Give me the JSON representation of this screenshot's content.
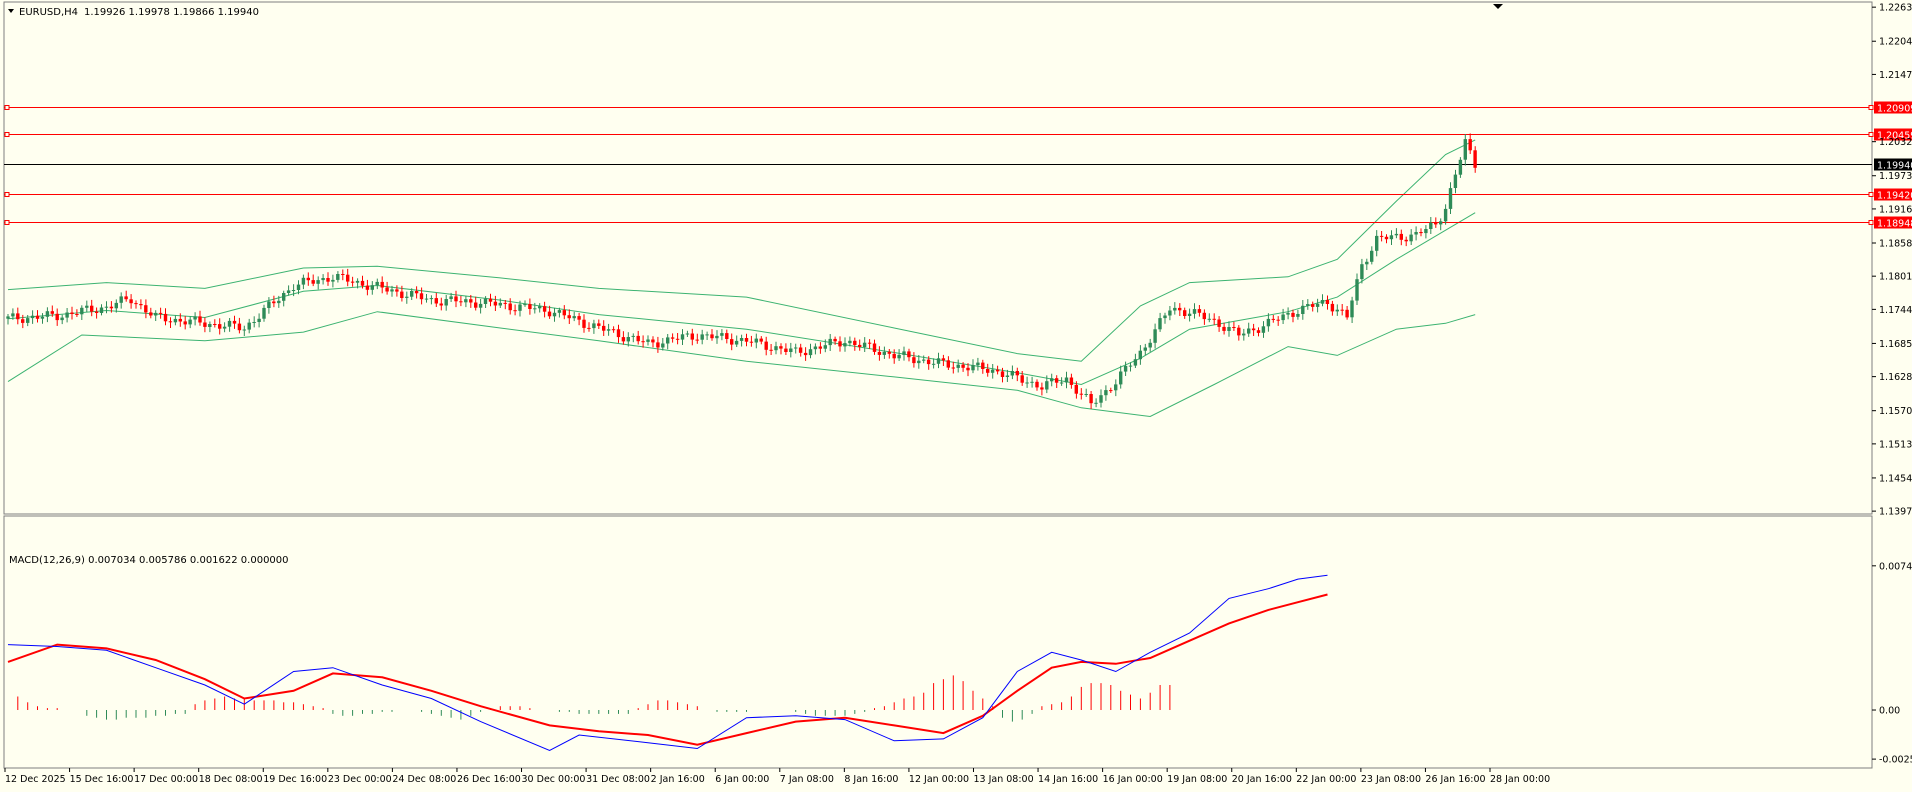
{
  "chart_data": [
    {
      "type": "candlestick",
      "title": "EURUSD,H4",
      "ohlc_header": "1.19926 1.19978 1.19866 1.19940",
      "symbol": "EURUSD",
      "timeframe": "H4",
      "current_price": "1.19940",
      "ylim": [
        1.1396,
        1.2265
      ],
      "y_ticks": [
        "1.22630",
        "1.22045",
        "1.21475",
        "1.20320",
        "1.19735",
        "1.19165",
        "1.18580",
        "1.18010",
        "1.17440",
        "1.16855",
        "1.16285",
        "1.15700",
        "1.15130",
        "1.14545",
        "1.13975"
      ],
      "y_tick_values": [
        1.2263,
        1.22045,
        1.21475,
        1.2032,
        1.19735,
        1.19165,
        1.1858,
        1.1801,
        1.1744,
        1.16855,
        1.16285,
        1.157,
        1.1513,
        1.14545,
        1.13975
      ],
      "horizontal_lines": [
        {
          "label": "1.20909",
          "value": 1.20909,
          "color": "#ff0000"
        },
        {
          "label": "1.20459",
          "value": 1.20459,
          "color": "#ff0000"
        },
        {
          "label": "1.19420",
          "value": 1.1942,
          "color": "#ff0000"
        },
        {
          "label": "1.18948",
          "value": 1.18948,
          "color": "#ff0000"
        }
      ],
      "x_ticks": [
        "12 Dec 2025",
        "15 Dec 16:00",
        "17 Dec 00:00",
        "18 Dec 08:00",
        "19 Dec 16:00",
        "23 Dec 00:00",
        "24 Dec 08:00",
        "26 Dec 16:00",
        "30 Dec 00:00",
        "31 Dec 08:00",
        "2 Jan 16:00",
        "6 Jan 00:00",
        "7 Jan 08:00",
        "8 Jan 16:00",
        "12 Jan 00:00",
        "13 Jan 08:00",
        "14 Jan 16:00",
        "16 Jan 00:00",
        "19 Jan 08:00",
        "20 Jan 16:00",
        "22 Jan 00:00",
        "23 Jan 08:00",
        "26 Jan 16:00",
        "28 Jan 00:00"
      ],
      "close_path": [
        [
          0,
          1.1728
        ],
        [
          10,
          1.1733
        ],
        [
          20,
          1.1748
        ],
        [
          25,
          1.1762
        ],
        [
          30,
          1.173
        ],
        [
          40,
          1.172
        ],
        [
          48,
          1.1712
        ],
        [
          58,
          1.1785
        ],
        [
          66,
          1.18
        ],
        [
          76,
          1.178
        ],
        [
          86,
          1.176
        ],
        [
          96,
          1.1756
        ],
        [
          110,
          1.1742
        ],
        [
          120,
          1.1712
        ],
        [
          130,
          1.1685
        ],
        [
          140,
          1.17
        ],
        [
          150,
          1.169
        ],
        [
          160,
          1.167
        ],
        [
          170,
          1.169
        ],
        [
          180,
          1.1665
        ],
        [
          190,
          1.165
        ],
        [
          200,
          1.164
        ],
        [
          210,
          1.1612
        ],
        [
          215,
          1.1625
        ],
        [
          220,
          1.158
        ],
        [
          225,
          1.162
        ],
        [
          230,
          1.167
        ],
        [
          236,
          1.1745
        ],
        [
          240,
          1.174
        ],
        [
          246,
          1.172
        ],
        [
          250,
          1.17
        ],
        [
          256,
          1.172
        ],
        [
          262,
          1.1743
        ],
        [
          268,
          1.1757
        ],
        [
          272,
          1.173
        ],
        [
          275,
          1.182
        ],
        [
          278,
          1.1865
        ],
        [
          282,
          1.1868
        ],
        [
          286,
          1.1872
        ],
        [
          290,
          1.189
        ],
        [
          292,
          1.192
        ],
        [
          294,
          1.1975
        ],
        [
          296,
          1.203
        ],
        [
          298,
          1.1994
        ]
      ],
      "bollinger_upper": [
        [
          0,
          1.1778
        ],
        [
          20,
          1.179
        ],
        [
          40,
          1.178
        ],
        [
          60,
          1.1815
        ],
        [
          75,
          1.1818
        ],
        [
          100,
          1.1798
        ],
        [
          120,
          1.178
        ],
        [
          150,
          1.1765
        ],
        [
          180,
          1.1712
        ],
        [
          205,
          1.1668
        ],
        [
          218,
          1.1655
        ],
        [
          230,
          1.175
        ],
        [
          240,
          1.179
        ],
        [
          260,
          1.18
        ],
        [
          270,
          1.183
        ],
        [
          282,
          1.193
        ],
        [
          292,
          1.201
        ],
        [
          298,
          1.2035
        ]
      ],
      "bollinger_middle": [
        [
          0,
          1.1728
        ],
        [
          20,
          1.1742
        ],
        [
          40,
          1.173
        ],
        [
          60,
          1.1775
        ],
        [
          75,
          1.1785
        ],
        [
          100,
          1.176
        ],
        [
          120,
          1.1735
        ],
        [
          150,
          1.171
        ],
        [
          180,
          1.167
        ],
        [
          205,
          1.1635
        ],
        [
          218,
          1.1615
        ],
        [
          230,
          1.166
        ],
        [
          240,
          1.171
        ],
        [
          260,
          1.174
        ],
        [
          270,
          1.1765
        ],
        [
          282,
          1.183
        ],
        [
          292,
          1.188
        ],
        [
          298,
          1.191
        ]
      ],
      "bollinger_lower": [
        [
          0,
          1.162
        ],
        [
          15,
          1.17
        ],
        [
          40,
          1.169
        ],
        [
          60,
          1.1705
        ],
        [
          75,
          1.174
        ],
        [
          100,
          1.1712
        ],
        [
          120,
          1.169
        ],
        [
          150,
          1.1655
        ],
        [
          180,
          1.1628
        ],
        [
          205,
          1.1605
        ],
        [
          218,
          1.1575
        ],
        [
          232,
          1.156
        ],
        [
          245,
          1.1615
        ],
        [
          260,
          1.168
        ],
        [
          270,
          1.1665
        ],
        [
          282,
          1.171
        ],
        [
          292,
          1.172
        ],
        [
          298,
          1.1735
        ]
      ]
    },
    {
      "type": "macd",
      "title": "MACD(12,26,9) 0.007034 0.005786 0.001622 0.000000",
      "ylim": [
        -0.0027,
        0.008
      ],
      "y_ticks": [
        "0.00749",
        "0.00",
        "-0.00255"
      ],
      "y_tick_values": [
        0.00749,
        0.0,
        -0.00255
      ],
      "main_line": [
        [
          0,
          0.0034
        ],
        [
          10,
          0.0033
        ],
        [
          20,
          0.0031
        ],
        [
          30,
          0.0022
        ],
        [
          40,
          0.0013
        ],
        [
          48,
          0.0003
        ],
        [
          58,
          0.002
        ],
        [
          66,
          0.0022
        ],
        [
          76,
          0.0013
        ],
        [
          86,
          0.0006
        ],
        [
          96,
          -0.0006
        ],
        [
          110,
          -0.0021
        ],
        [
          116,
          -0.0013
        ],
        [
          130,
          -0.0017
        ],
        [
          140,
          -0.002
        ],
        [
          150,
          -0.0004
        ],
        [
          160,
          -0.0003
        ],
        [
          170,
          -0.0005
        ],
        [
          180,
          -0.0016
        ],
        [
          190,
          -0.0015
        ],
        [
          198,
          -0.0004
        ],
        [
          205,
          0.002
        ],
        [
          212,
          0.003
        ],
        [
          218,
          0.0026
        ],
        [
          225,
          0.002
        ],
        [
          232,
          0.003
        ],
        [
          240,
          0.004
        ],
        [
          248,
          0.0058
        ],
        [
          256,
          0.0063
        ],
        [
          262,
          0.0068
        ],
        [
          268,
          0.007
        ]
      ],
      "signal_line": [
        [
          0,
          0.0025
        ],
        [
          10,
          0.0034
        ],
        [
          20,
          0.0032
        ],
        [
          30,
          0.0026
        ],
        [
          40,
          0.0016
        ],
        [
          48,
          0.0006
        ],
        [
          58,
          0.001
        ],
        [
          66,
          0.0019
        ],
        [
          76,
          0.0017
        ],
        [
          86,
          0.001
        ],
        [
          96,
          0.0002
        ],
        [
          110,
          -0.0008
        ],
        [
          120,
          -0.0011
        ],
        [
          130,
          -0.0013
        ],
        [
          140,
          -0.0018
        ],
        [
          150,
          -0.0012
        ],
        [
          160,
          -0.0006
        ],
        [
          170,
          -0.0004
        ],
        [
          180,
          -0.0008
        ],
        [
          190,
          -0.0012
        ],
        [
          198,
          -0.0003
        ],
        [
          205,
          0.001
        ],
        [
          212,
          0.0022
        ],
        [
          218,
          0.0025
        ],
        [
          225,
          0.0024
        ],
        [
          232,
          0.0027
        ],
        [
          240,
          0.0036
        ],
        [
          248,
          0.0045
        ],
        [
          256,
          0.0052
        ],
        [
          262,
          0.0056
        ],
        [
          268,
          0.006
        ]
      ],
      "histogram": [
        [
          2,
          0.0007
        ],
        [
          4,
          0.0004
        ],
        [
          6,
          0.0002
        ],
        [
          8,
          0.0001
        ],
        [
          10,
          0.0001
        ],
        [
          12,
          0.0
        ],
        [
          14,
          0.0
        ],
        [
          16,
          -0.0003
        ],
        [
          18,
          -0.0004
        ],
        [
          20,
          -0.0005
        ],
        [
          22,
          -0.0005
        ],
        [
          24,
          -0.0004
        ],
        [
          26,
          -0.0004
        ],
        [
          28,
          -0.0004
        ],
        [
          30,
          -0.0003
        ],
        [
          32,
          -0.0003
        ],
        [
          34,
          -0.0002
        ],
        [
          36,
          -0.0002
        ],
        [
          38,
          0.0003
        ],
        [
          40,
          0.0005
        ],
        [
          42,
          0.0006
        ],
        [
          44,
          0.0007
        ],
        [
          46,
          0.0006
        ],
        [
          48,
          0.0006
        ],
        [
          50,
          0.0005
        ],
        [
          52,
          0.0005
        ],
        [
          54,
          0.0005
        ],
        [
          56,
          0.0004
        ],
        [
          58,
          0.0004
        ],
        [
          60,
          0.0003
        ],
        [
          62,
          0.0002
        ],
        [
          64,
          0.0001
        ],
        [
          66,
          -0.0002
        ],
        [
          68,
          -0.0003
        ],
        [
          70,
          -0.0003
        ],
        [
          72,
          -0.0002
        ],
        [
          74,
          -0.0002
        ],
        [
          76,
          -0.0001
        ],
        [
          78,
          -0.0001
        ],
        [
          80,
          0.0
        ],
        [
          82,
          0.0
        ],
        [
          84,
          -0.0001
        ],
        [
          86,
          -0.0002
        ],
        [
          88,
          -0.0003
        ],
        [
          90,
          -0.0004
        ],
        [
          92,
          -0.0005
        ],
        [
          94,
          -0.0003
        ],
        [
          96,
          -0.0001
        ],
        [
          98,
          0.0001
        ],
        [
          100,
          0.0002
        ],
        [
          102,
          0.0002
        ],
        [
          104,
          0.0002
        ],
        [
          106,
          0.0001
        ],
        [
          108,
          0.0
        ],
        [
          110,
          0.0
        ],
        [
          112,
          -0.0001
        ],
        [
          114,
          -0.0001
        ],
        [
          116,
          -0.0002
        ],
        [
          118,
          -0.0002
        ],
        [
          120,
          -0.0002
        ],
        [
          122,
          -0.0002
        ],
        [
          124,
          -0.0002
        ],
        [
          126,
          -0.0002
        ],
        [
          128,
          0.0001
        ],
        [
          130,
          0.0003
        ],
        [
          132,
          0.0005
        ],
        [
          134,
          0.0005
        ],
        [
          136,
          0.0004
        ],
        [
          138,
          0.0003
        ],
        [
          140,
          0.0002
        ],
        [
          142,
          0.0
        ],
        [
          144,
          -0.0001
        ],
        [
          146,
          -0.0001
        ],
        [
          148,
          -0.0001
        ],
        [
          150,
          -0.0001
        ],
        [
          152,
          0.0
        ],
        [
          154,
          0.0
        ],
        [
          156,
          0.0
        ],
        [
          158,
          0.0
        ],
        [
          160,
          -0.0001
        ],
        [
          162,
          -0.0002
        ],
        [
          164,
          -0.0003
        ],
        [
          166,
          -0.0003
        ],
        [
          168,
          -0.0003
        ],
        [
          170,
          -0.0003
        ],
        [
          172,
          -0.0002
        ],
        [
          174,
          -0.0001
        ],
        [
          176,
          0.0001
        ],
        [
          178,
          0.0002
        ],
        [
          180,
          0.0004
        ],
        [
          182,
          0.0006
        ],
        [
          184,
          0.0007
        ],
        [
          186,
          0.0009
        ],
        [
          188,
          0.0014
        ],
        [
          190,
          0.0016
        ],
        [
          192,
          0.0018
        ],
        [
          194,
          0.0015
        ],
        [
          196,
          0.001
        ],
        [
          198,
          0.0006
        ],
        [
          200,
          0.0002
        ],
        [
          202,
          -0.0004
        ],
        [
          204,
          -0.0006
        ],
        [
          206,
          -0.0005
        ],
        [
          208,
          -0.0002
        ],
        [
          210,
          0.0002
        ],
        [
          212,
          0.0003
        ],
        [
          214,
          0.0004
        ],
        [
          216,
          0.0007
        ],
        [
          218,
          0.0012
        ],
        [
          220,
          0.0014
        ],
        [
          222,
          0.0014
        ],
        [
          224,
          0.0013
        ],
        [
          226,
          0.001
        ],
        [
          228,
          0.0008
        ],
        [
          230,
          0.0006
        ],
        [
          232,
          0.0009
        ],
        [
          234,
          0.0013
        ],
        [
          236,
          0.0013
        ]
      ]
    }
  ]
}
